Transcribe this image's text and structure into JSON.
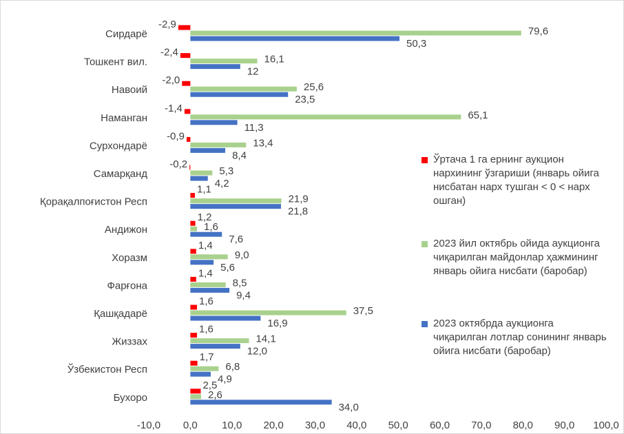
{
  "chart_data": {
    "type": "barh",
    "categories": [
      "Сирдарё",
      "Тошкент вил.",
      "Навоий",
      "Наманган",
      "Сурхондарё",
      "Самарқанд",
      "Қорақалпоғистон Респ",
      "Андижон",
      "Хоразм",
      "Фарғона",
      "Қашқадарё",
      "Жиззах",
      "Ўзбекистон Респ",
      "Бухоро"
    ],
    "series": [
      {
        "name": "Ўртача 1 га ернинг аукцион нархининг ўзгариши (январь ойига нисбатан нарх тушган < 0 < нарх ошган)",
        "color": "#ff0000",
        "values": [
          -2.9,
          -2.4,
          -2.0,
          -1.4,
          -0.9,
          -0.2,
          1.1,
          1.2,
          1.4,
          1.4,
          1.6,
          1.6,
          1.7,
          2.5
        ],
        "value_labels": [
          "-2,9",
          "-2,4",
          "-2,0",
          "-1,4",
          "-0,9",
          "-0,2",
          "1,1",
          "1,2",
          "1,4",
          "1,4",
          "1,6",
          "1,6",
          "1,7",
          "2,5"
        ]
      },
      {
        "name": "2023 йил октябрь ойида аукционга чиқарилган майдонлар ҳажмининг январь ойига нисбати (баробар)",
        "color": "#a9d18e",
        "values": [
          79.6,
          16.1,
          25.6,
          65.1,
          13.4,
          5.3,
          21.9,
          1.6,
          9.0,
          8.5,
          37.5,
          14.1,
          6.8,
          2.6
        ],
        "value_labels": [
          "79,6",
          "16,1",
          "25,6",
          "65,1",
          "13,4",
          "5,3",
          "21,9",
          "1,6",
          "9,0",
          "8,5",
          "37,5",
          "14,1",
          "6,8",
          "2,6"
        ]
      },
      {
        "name": "2023 октябрда аукционга чиқарилган лотлар сонининг январь ойига нисбати (баробар)",
        "color": "#4472c4",
        "values": [
          50.3,
          12,
          23.5,
          11.3,
          8.4,
          4.2,
          21.8,
          7.6,
          5.6,
          9.4,
          16.9,
          12.0,
          4.9,
          34.0
        ],
        "value_labels": [
          "50,3",
          "12",
          "23,5",
          "11,3",
          "8,4",
          "4,2",
          "21,8",
          "7,6",
          "5,6",
          "9,4",
          "16,9",
          "12,0",
          "4,9",
          "34,0"
        ]
      }
    ],
    "xlim": [
      -10,
      100
    ],
    "xticks": [
      {
        "value": -10,
        "label": "-10,0"
      },
      {
        "value": 0,
        "label": "0,0"
      },
      {
        "value": 10,
        "label": "10,0"
      },
      {
        "value": 20,
        "label": "20,0"
      },
      {
        "value": 30,
        "label": "30,0"
      },
      {
        "value": 40,
        "label": "40,0"
      },
      {
        "value": 50,
        "label": "50,0"
      },
      {
        "value": 60,
        "label": "60,0"
      },
      {
        "value": 70,
        "label": "70,0"
      },
      {
        "value": 80,
        "label": "80,0"
      },
      {
        "value": 90,
        "label": "90,0"
      },
      {
        "value": 100,
        "label": "100,0"
      }
    ],
    "grid": false,
    "legend": "right"
  }
}
